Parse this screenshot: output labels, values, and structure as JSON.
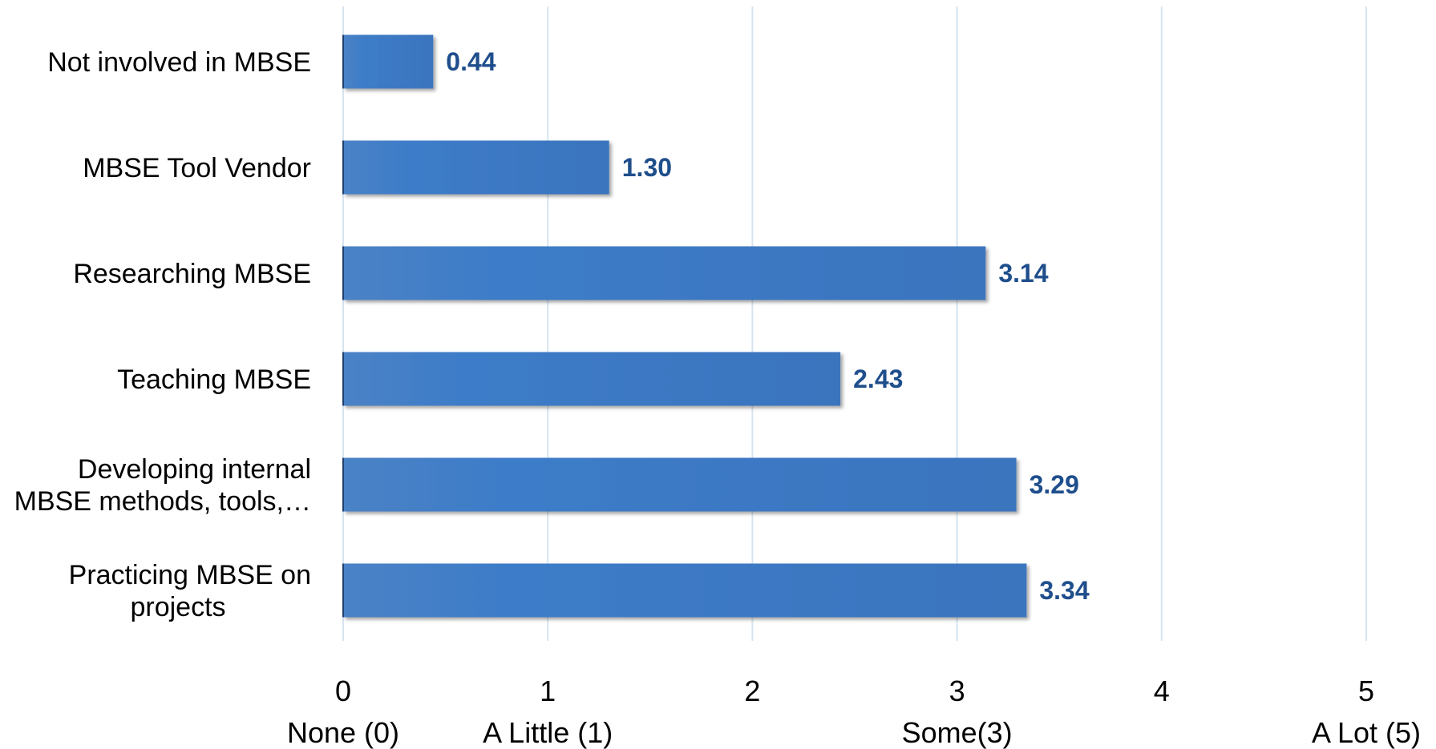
{
  "chart_data": {
    "type": "bar",
    "orientation": "horizontal",
    "categories": [
      "Not involved in MBSE",
      "MBSE Tool Vendor",
      "Researching MBSE",
      "Teaching MBSE",
      "Developing internal MBSE methods, tools,…",
      "Practicing MBSE on projects"
    ],
    "category_lines": [
      [
        "Not involved in MBSE"
      ],
      [
        "MBSE Tool Vendor"
      ],
      [
        "Researching MBSE"
      ],
      [
        "Teaching MBSE"
      ],
      [
        "Developing internal",
        "MBSE methods, tools,…"
      ],
      [
        "Practicing MBSE on",
        "projects"
      ]
    ],
    "values": [
      0.44,
      1.3,
      3.14,
      2.43,
      3.29,
      3.34
    ],
    "value_labels": [
      "0.44",
      "1.30",
      "3.14",
      "2.43",
      "3.29",
      "3.34"
    ],
    "xlim": [
      0,
      5
    ],
    "x_ticks": [
      "0",
      "1",
      "2",
      "3",
      "4",
      "5"
    ],
    "scale_labels": [
      {
        "value": 0,
        "text": "None (0)"
      },
      {
        "value": 1,
        "text": "A Little (1)"
      },
      {
        "value": 3,
        "text": "Some(3)"
      },
      {
        "value": 5,
        "text": "A Lot (5)"
      }
    ],
    "grid": true,
    "legend": "none",
    "colors": {
      "bar": "#3b78c4",
      "bar_dark": "#2e64a8",
      "data_label": "#1f4e8c",
      "grid": "#d6e4f0"
    }
  }
}
